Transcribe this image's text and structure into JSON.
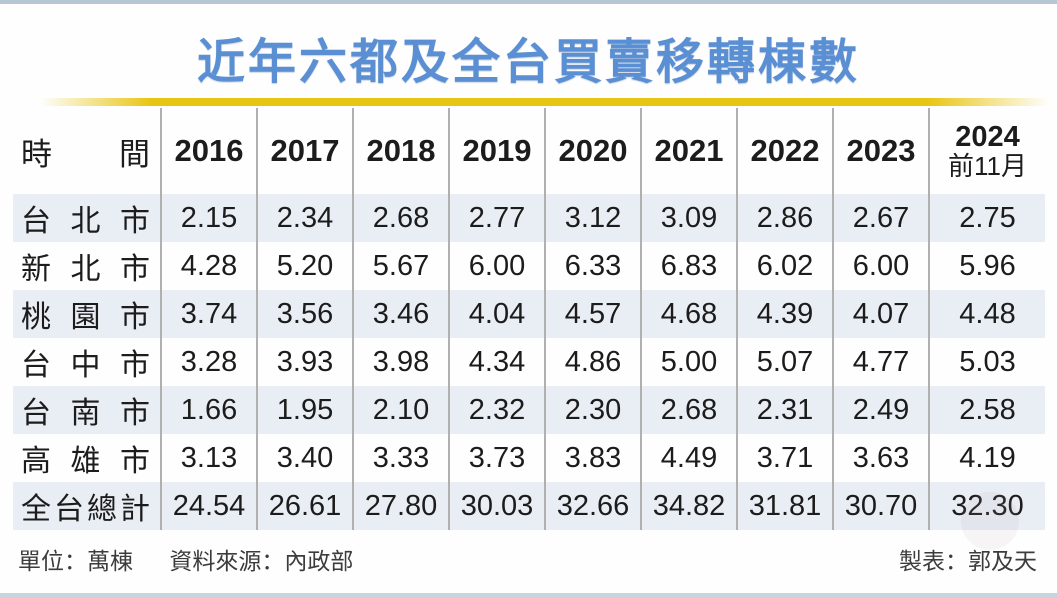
{
  "page": {
    "title": "近年六都及全台買賣移轉棟數"
  },
  "table": {
    "header": {
      "time_chars": [
        "時",
        "間"
      ],
      "time_label": "時間",
      "years": [
        "2016",
        "2017",
        "2018",
        "2019",
        "2020",
        "2021",
        "2022",
        "2023"
      ],
      "last_col_line1": "2024",
      "last_col_line2": "前11月"
    },
    "rows": [
      {
        "label": "台北市",
        "values": [
          "2.15",
          "2.34",
          "2.68",
          "2.77",
          "3.12",
          "3.09",
          "2.86",
          "2.67",
          "2.75"
        ]
      },
      {
        "label": "新北市",
        "values": [
          "4.28",
          "5.20",
          "5.67",
          "6.00",
          "6.33",
          "6.83",
          "6.02",
          "6.00",
          "5.96"
        ]
      },
      {
        "label": "桃園市",
        "values": [
          "3.74",
          "3.56",
          "3.46",
          "4.04",
          "4.57",
          "4.68",
          "4.39",
          "4.07",
          "4.48"
        ]
      },
      {
        "label": "台中市",
        "values": [
          "3.28",
          "3.93",
          "3.98",
          "4.34",
          "4.86",
          "5.00",
          "5.07",
          "4.77",
          "5.03"
        ]
      },
      {
        "label": "台南市",
        "values": [
          "1.66",
          "1.95",
          "2.10",
          "2.32",
          "2.30",
          "2.68",
          "2.31",
          "2.49",
          "2.58"
        ]
      },
      {
        "label": "高雄市",
        "values": [
          "3.13",
          "3.40",
          "3.33",
          "3.73",
          "3.83",
          "4.49",
          "3.71",
          "3.63",
          "4.19"
        ]
      },
      {
        "label": "全台總計",
        "values": [
          "24.54",
          "26.61",
          "27.80",
          "30.03",
          "32.66",
          "34.82",
          "31.81",
          "30.70",
          "32.30"
        ]
      }
    ]
  },
  "footer": {
    "unit": "單位：萬棟",
    "source": "資料來源：內政部",
    "credit": "製表：郭及天"
  },
  "colors": {
    "title_blue": "#5a8fd3",
    "accent_gold": "#e9c513",
    "row_shade": "#e9eef5",
    "grid_line": "#b0b0b0"
  },
  "chart_data": {
    "type": "table",
    "title": "近年六都及全台買賣移轉棟數",
    "unit": "萬棟",
    "source": "內政部",
    "categories": [
      "2016",
      "2017",
      "2018",
      "2019",
      "2020",
      "2021",
      "2022",
      "2023",
      "2024前11月"
    ],
    "series": [
      {
        "name": "台北市",
        "values": [
          2.15,
          2.34,
          2.68,
          2.77,
          3.12,
          3.09,
          2.86,
          2.67,
          2.75
        ]
      },
      {
        "name": "新北市",
        "values": [
          4.28,
          5.2,
          5.67,
          6.0,
          6.33,
          6.83,
          6.02,
          6.0,
          5.96
        ]
      },
      {
        "name": "桃園市",
        "values": [
          3.74,
          3.56,
          3.46,
          4.04,
          4.57,
          4.68,
          4.39,
          4.07,
          4.48
        ]
      },
      {
        "name": "台中市",
        "values": [
          3.28,
          3.93,
          3.98,
          4.34,
          4.86,
          5.0,
          5.07,
          4.77,
          5.03
        ]
      },
      {
        "name": "台南市",
        "values": [
          1.66,
          1.95,
          2.1,
          2.32,
          2.3,
          2.68,
          2.31,
          2.49,
          2.58
        ]
      },
      {
        "name": "高雄市",
        "values": [
          3.13,
          3.4,
          3.33,
          3.73,
          3.83,
          4.49,
          3.71,
          3.63,
          4.19
        ]
      },
      {
        "name": "全台總計",
        "values": [
          24.54,
          26.61,
          27.8,
          30.03,
          32.66,
          34.82,
          31.81,
          30.7,
          32.3
        ]
      }
    ]
  }
}
